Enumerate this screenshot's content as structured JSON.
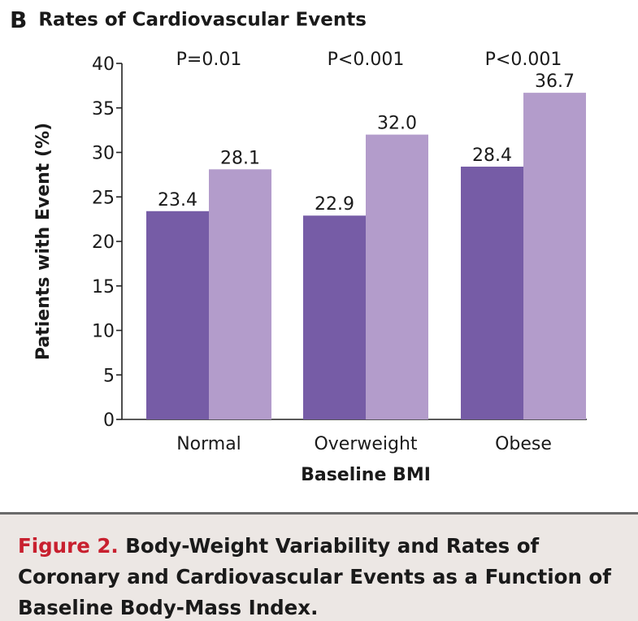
{
  "panel": {
    "letter": "B",
    "title": "Rates of Cardiovascular Events"
  },
  "colors": {
    "series_1": "#765ca6",
    "series_2": "#b39ccb",
    "caption_label": "#c8202f",
    "caption_background": "#ece7e4",
    "caption_rule": "#6a6a6a"
  },
  "chart_data": {
    "type": "bar",
    "xlabel": "Baseline BMI",
    "ylabel": "Patients with Event (%)",
    "ylim": [
      0,
      40
    ],
    "yticks": [
      0,
      5,
      10,
      15,
      20,
      25,
      30,
      35,
      40
    ],
    "categories": [
      "Normal",
      "Overweight",
      "Obese"
    ],
    "series": [
      {
        "values": [
          23.4,
          22.9,
          28.4
        ],
        "labels": [
          "23.4",
          "22.9",
          "28.4"
        ]
      },
      {
        "values": [
          28.1,
          32.0,
          36.7
        ],
        "labels": [
          "28.1",
          "32.0",
          "36.7"
        ]
      }
    ],
    "annotations": [
      "P=0.01",
      "P<0.001",
      "P<0.001"
    ],
    "grid": false,
    "legend": "none"
  },
  "caption": {
    "label": "Figure 2.",
    "text": " Body-Weight Variability and Rates of Coronary and Cardiovascular Events as a Function of Baseline Body-Mass Index."
  }
}
